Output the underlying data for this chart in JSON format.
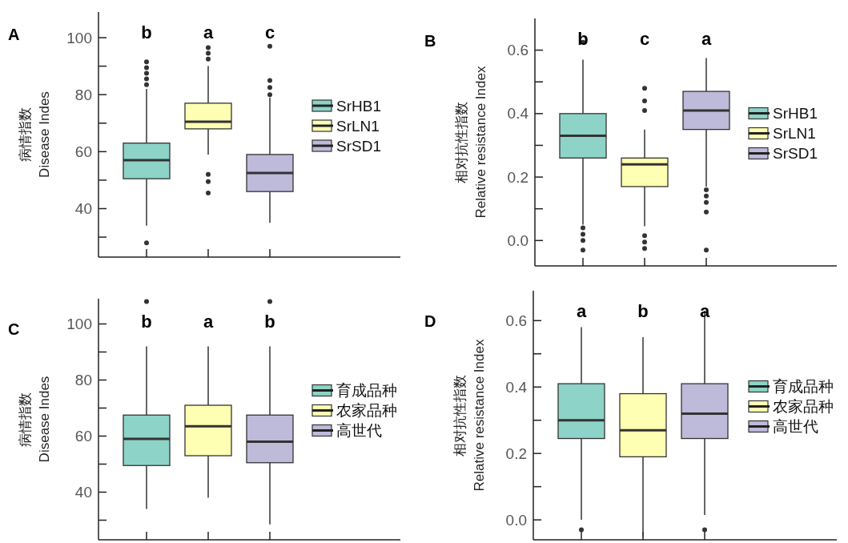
{
  "chart_data": [
    {
      "type": "box",
      "title": "A",
      "ylabel": "病情指数\nDisease Indes",
      "categories": [
        null
      ],
      "ylim": [
        23,
        109
      ],
      "yticks": [
        {
          "value": 30,
          "label": null
        },
        40,
        {
          "value": 50,
          "label": null
        },
        60,
        {
          "value": 70,
          "label": null
        },
        80,
        {
          "value": 90,
          "label": null
        },
        100
      ],
      "tick_labels": "y",
      "legend": "right",
      "grid": false,
      "series": [
        {
          "name": "SrHB1",
          "color": "#8dd3c7",
          "boxes": [
            {
              "low": 34,
              "q1": 50.5,
              "median": 57,
              "q3": 63,
              "high": 82,
              "outliers": [
                83.5,
                85.5,
                87.5,
                89.5,
                91.5,
                28
              ]
            }
          ]
        },
        {
          "name": "SrLN1",
          "color": "#ffffb3",
          "boxes": [
            {
              "low": 59,
              "q1": 68,
              "median": 70.5,
              "q3": 77,
              "high": 90,
              "outliers": [
                92.5,
                94.5,
                96.5,
                52,
                49.5,
                45.5
              ]
            }
          ]
        },
        {
          "name": "SrSD1",
          "color": "#bebada",
          "boxes": [
            {
              "low": 35,
              "q1": 46,
              "median": 52.5,
              "q3": 59,
              "high": 79,
              "outliers": [
                80,
                82.5,
                85,
                97
              ]
            }
          ]
        }
      ],
      "annotations": [
        "b",
        "a",
        "c"
      ]
    },
    {
      "type": "box",
      "title": "B",
      "ylabel": "相对抗性指数\nRelative resistance Index",
      "categories": [
        null
      ],
      "ylim": [
        -0.08,
        0.7
      ],
      "yticks": [
        {
          "value": 0,
          "label": "0.0"
        },
        {
          "value": 0.1,
          "label": null
        },
        0.2,
        {
          "value": 0.3,
          "label": null
        },
        0.4,
        {
          "value": 0.5,
          "label": null
        },
        0.6
      ],
      "tick_labels": "y",
      "legend": "right",
      "grid": false,
      "series": [
        {
          "name": "SrHB1",
          "color": "#8dd3c7",
          "boxes": [
            {
              "low": 0.05,
              "q1": 0.26,
              "median": 0.33,
              "q3": 0.4,
              "high": 0.57,
              "outliers": [
                0.625,
                0.04,
                0.02,
                0.0,
                -0.03
              ]
            }
          ]
        },
        {
          "name": "SrLN1",
          "color": "#ffffb3",
          "boxes": [
            {
              "low": 0.045,
              "q1": 0.17,
              "median": 0.24,
              "q3": 0.26,
              "high": 0.35,
              "outliers": [
                0.41,
                0.44,
                0.48,
                0.015,
                -0.005,
                -0.025
              ]
            }
          ]
        },
        {
          "name": "SrSD1",
          "color": "#bebada",
          "boxes": [
            {
              "low": 0.17,
              "q1": 0.35,
              "median": 0.41,
              "q3": 0.47,
              "high": 0.575,
              "outliers": [
                0.16,
                0.14,
                0.12,
                0.09,
                -0.03
              ]
            }
          ]
        }
      ],
      "annotations": [
        "b",
        "c",
        "a"
      ]
    },
    {
      "type": "box",
      "title": "C",
      "ylabel": "病情指数\nDisease Indes",
      "categories": [
        null
      ],
      "ylim": [
        23,
        109
      ],
      "yticks": [
        {
          "value": 30,
          "label": null
        },
        40,
        {
          "value": 50,
          "label": null
        },
        60,
        {
          "value": 70,
          "label": null
        },
        80,
        {
          "value": 90,
          "label": null
        },
        100
      ],
      "tick_labels": "y",
      "legend": "right",
      "grid": false,
      "series": [
        {
          "name": "育成品种",
          "color": "#8dd3c7",
          "boxes": [
            {
              "low": 34,
              "q1": 49.5,
              "median": 59,
              "q3": 67.5,
              "high": 92,
              "outliers": [
                108
              ]
            }
          ]
        },
        {
          "name": "农家品种",
          "color": "#ffffb3",
          "boxes": [
            {
              "low": 38,
              "q1": 53,
              "median": 63.5,
              "q3": 71,
              "high": 92
            }
          ]
        },
        {
          "name": "高世代",
          "color": "#bebada",
          "boxes": [
            {
              "low": 28.5,
              "q1": 50.5,
              "median": 58,
              "q3": 67.5,
              "high": 92,
              "outliers": [
                108
              ]
            }
          ]
        }
      ],
      "annotations": [
        "b",
        "a",
        "b"
      ]
    },
    {
      "type": "box",
      "title": "D",
      "ylabel": "相对抗性指数\nRelative resistance Index",
      "categories": [
        null
      ],
      "ylim": [
        -0.06,
        0.69
      ],
      "yticks": [
        {
          "value": 0,
          "label": "0.0"
        },
        {
          "value": 0.1,
          "label": null
        },
        0.2,
        {
          "value": 0.3,
          "label": null
        },
        0.4,
        {
          "value": 0.5,
          "label": null
        },
        0.6
      ],
      "tick_labels": "y",
      "legend": "right",
      "grid": false,
      "series": [
        {
          "name": "育成品种",
          "color": "#8dd3c7",
          "boxes": [
            {
              "low": 0.0,
              "q1": 0.245,
              "median": 0.3,
              "q3": 0.41,
              "high": 0.58,
              "outliers": [
                -0.03
              ]
            }
          ]
        },
        {
          "name": "农家品种",
          "color": "#ffffb3",
          "boxes": [
            {
              "low": -0.05,
              "q1": 0.19,
              "median": 0.27,
              "q3": 0.38,
              "high": 0.55
            }
          ]
        },
        {
          "name": "高世代",
          "color": "#bebada",
          "boxes": [
            {
              "low": 0.015,
              "q1": 0.245,
              "median": 0.32,
              "q3": 0.41,
              "high": 0.63,
              "outliers": [
                -0.03
              ]
            }
          ]
        }
      ],
      "annotations": [
        "a",
        "b",
        "a"
      ]
    }
  ]
}
